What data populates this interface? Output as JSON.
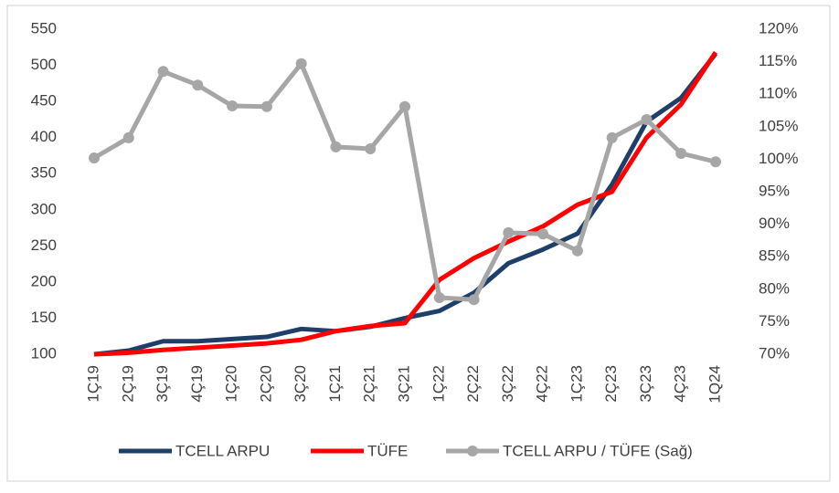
{
  "chart_data": {
    "type": "line",
    "categories": [
      "1Ç19",
      "2Ç19",
      "3Ç19",
      "4Ç19",
      "1Ç20",
      "2Ç20",
      "3Ç20",
      "1Ç21",
      "2Ç21",
      "3Ç21",
      "1Ç22",
      "2Ç22",
      "3Ç22",
      "4Ç22",
      "1Ç23",
      "2Ç23",
      "3Ç23",
      "4Ç23",
      "1Q24"
    ],
    "series": [
      {
        "name": "TCELL ARPU",
        "color": "#1f3f6b",
        "values": [
          100,
          105,
          118,
          118,
          121,
          124,
          135,
          132,
          138,
          150,
          160,
          185,
          226,
          245,
          267,
          335,
          422,
          455,
          516
        ]
      },
      {
        "name": "TÜFE",
        "color": "#ff0000",
        "values": [
          100,
          102,
          106,
          109,
          112,
          115,
          120,
          132,
          139,
          143,
          203,
          233,
          256,
          277,
          307,
          325,
          400,
          446,
          518
        ]
      },
      {
        "name": "TCELL ARPU / TÜFE (Sağ)",
        "color": "#a6a6a6",
        "axis": "y2",
        "markers": true,
        "values": [
          100.2,
          103.3,
          113.5,
          111.4,
          108.2,
          108.1,
          114.7,
          101.9,
          101.6,
          108.1,
          78.7,
          78.4,
          88.7,
          88.5,
          85.9,
          103.3,
          106.1,
          100.9,
          99.6
        ]
      }
    ],
    "ylim": [
      100,
      550
    ],
    "yticks": [
      100,
      150,
      200,
      250,
      300,
      350,
      400,
      450,
      500,
      550
    ],
    "y2lim": [
      70,
      120
    ],
    "y2ticks": [
      {
        "value": 70,
        "label": "70%"
      },
      {
        "value": 75,
        "label": "75%"
      },
      {
        "value": 80,
        "label": "80%"
      },
      {
        "value": 85,
        "label": "85%"
      },
      {
        "value": 90,
        "label": "90%"
      },
      {
        "value": 95,
        "label": "95%"
      },
      {
        "value": 100,
        "label": "100%"
      },
      {
        "value": 105,
        "label": "105%"
      },
      {
        "value": 110,
        "label": "110%"
      },
      {
        "value": 115,
        "label": "115%"
      },
      {
        "value": 120,
        "label": "120%"
      }
    ],
    "legend": "bottom",
    "grid": false
  }
}
